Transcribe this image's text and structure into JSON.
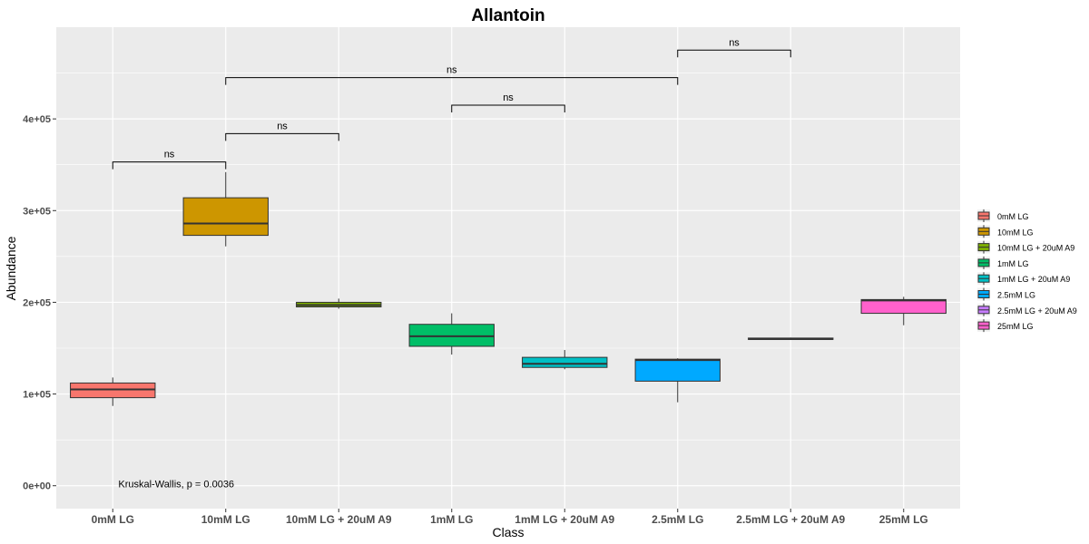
{
  "chart_data": {
    "type": "box",
    "title": "Allantoin",
    "xlabel": "Class",
    "ylabel": "Abundance",
    "ylim": [
      -25000,
      500000
    ],
    "yticks": [
      0,
      100000,
      200000,
      300000,
      400000
    ],
    "ytick_labels": [
      "0e+00",
      "1e+05",
      "2e+05",
      "3e+05",
      "4e+05"
    ],
    "grid": true,
    "legend_position": "right",
    "categories": [
      "0mM LG",
      "10mM LG",
      "10mM LG + 20uM A9",
      "1mM LG",
      "1mM LG + 20uM A9",
      "2.5mM LG",
      "2.5mM LG + 20uM A9",
      "25mM LG"
    ],
    "colors": [
      "#F8766D",
      "#CD9600",
      "#7CAE00",
      "#00BE67",
      "#00BFC4",
      "#00A9FF",
      "#C77CFF",
      "#FF61CC"
    ],
    "boxes": [
      {
        "min": 87000,
        "q1": 96000,
        "median": 105000,
        "q3": 112000,
        "max": 118000
      },
      {
        "min": 261000,
        "q1": 273000,
        "median": 286000,
        "q3": 314000,
        "max": 342000
      },
      {
        "min": 193000,
        "q1": 195000,
        "median": 197000,
        "q3": 200000,
        "max": 204000
      },
      {
        "min": 143000,
        "q1": 152000,
        "median": 163000,
        "q3": 176000,
        "max": 188000
      },
      {
        "min": 127000,
        "q1": 129000,
        "median": 133000,
        "q3": 140000,
        "max": 148000
      },
      {
        "min": 91000,
        "q1": 114000,
        "median": 137000,
        "q3": 138000,
        "max": 139000
      },
      {
        "min": 159000,
        "q1": 159500,
        "median": 160000,
        "q3": 161000,
        "max": 161500
      },
      {
        "min": 175000,
        "q1": 188000,
        "median": 202000,
        "q3": 203000,
        "max": 206000
      }
    ],
    "comparisons": [
      {
        "from": 0,
        "to": 1,
        "y": 353000,
        "label": "ns"
      },
      {
        "from": 1,
        "to": 2,
        "y": 384000,
        "label": "ns"
      },
      {
        "from": 3,
        "to": 4,
        "y": 415000,
        "label": "ns"
      },
      {
        "from": 1,
        "to": 5,
        "y": 445000,
        "label": "ns"
      },
      {
        "from": 5,
        "to": 6,
        "y": 475000,
        "label": "ns"
      }
    ],
    "annotation": {
      "text": "Kruskal-Wallis, p = 0.0036",
      "x": 0.75,
      "y": 2000
    }
  }
}
